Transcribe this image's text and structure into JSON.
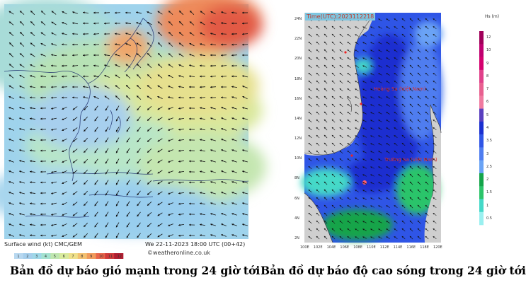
{
  "wind_map": {
    "legend_label": "Surface wind (kt)   CMC/GEM",
    "valid_time": "We 22-11-2023 18:00 UTC (00+42)",
    "credit": "©weatheronline.co.uk",
    "colorbar_ticks": [
      "1",
      "2",
      "3",
      "4",
      "5",
      "6",
      "7",
      "8",
      "9",
      "10",
      "11",
      "12"
    ],
    "colorbar_colors": [
      "#b8d8f0",
      "#a6cfec",
      "#9fd8e8",
      "#a4e2d0",
      "#bfe6b0",
      "#d8ea9c",
      "#eee08a",
      "#f2c070",
      "#f09a5c",
      "#e8644a",
      "#d03a3a",
      "#b01e30"
    ],
    "caption": "Bản đồ dự báo gió mạnh trong 24 giờ tới"
  },
  "wave_map": {
    "time_label": "Time(UTC):2023112218",
    "lat_ticks": [
      "24N",
      "22N",
      "20N",
      "18N",
      "16N",
      "14N",
      "12N",
      "10N",
      "8N",
      "6N",
      "4N",
      "2N"
    ],
    "lon_ticks": [
      "100E",
      "102E",
      "104E",
      "106E",
      "108E",
      "110E",
      "112E",
      "114E",
      "116E",
      "118E",
      "120E"
    ],
    "legend_title": "Hs (m)",
    "legend_ticks": [
      "12",
      "10",
      "9",
      "8",
      "7",
      "6",
      "5",
      "4",
      "3.5",
      "3",
      "2.5",
      "2",
      "1.5",
      "1",
      "0.5"
    ],
    "legend_colors": [
      "#a0005a",
      "#bf0070",
      "#d4006e",
      "#e0408a",
      "#e86090",
      "#f07aa0",
      "#5a3fbf",
      "#1a2fd0",
      "#2f55e6",
      "#4f7df0",
      "#6aa3f5",
      "#14a44a",
      "#2cc46a",
      "#44d9c8",
      "#9af0f0"
    ],
    "annotations": [
      "Hoàng Sa (Việt Nam)",
      "Trường Sa (Việt Nam)"
    ],
    "caption": "Bản đồ dự báo độ cao sóng trong 24 giờ tới"
  }
}
